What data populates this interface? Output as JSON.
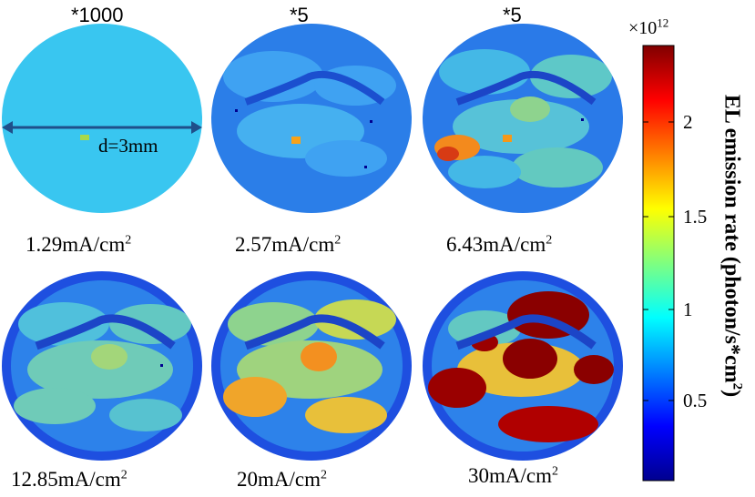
{
  "multipliers": [
    "*1000",
    "*5",
    "*5"
  ],
  "panels": [
    {
      "current": "1.29mA/cm",
      "exp": "2"
    },
    {
      "current": "2.57mA/cm",
      "exp": "2"
    },
    {
      "current": "6.43mA/cm",
      "exp": "2"
    },
    {
      "current": "12.85mA/cm",
      "exp": "2"
    },
    {
      "current": "20mA/cm",
      "exp": "2"
    },
    {
      "current": "30mA/cm",
      "exp": "2"
    }
  ],
  "diameter_label": "d=3mm",
  "colorbar": {
    "scale_base": "×10",
    "scale_exp": "12",
    "ticks": [
      "2",
      "1.5",
      "1",
      "0.5"
    ],
    "title": "EL emission rate (photon/s*cm",
    "title_exp": "2",
    "title_end": ")"
  },
  "colors": {
    "low": "#00008f",
    "mid": "#00ffff",
    "high": "#800000"
  }
}
